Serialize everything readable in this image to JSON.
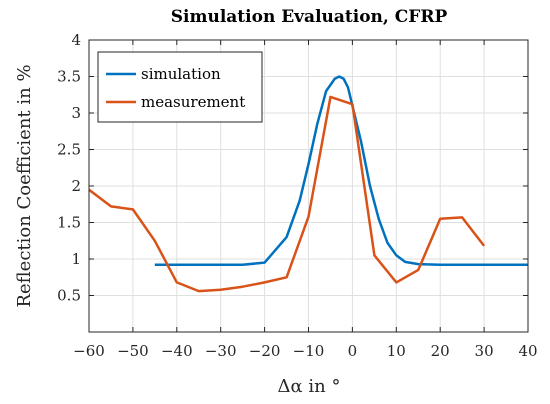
{
  "chart_data": {
    "type": "line",
    "title": "Simulation Evaluation, CFRP",
    "xlabel": "Δα in °",
    "ylabel": "Reflection Coefficient in %",
    "xlim": [
      -60,
      40
    ],
    "ylim": [
      0,
      4
    ],
    "xticks": [
      -60,
      -50,
      -40,
      -30,
      -20,
      -10,
      0,
      10,
      20,
      30,
      40
    ],
    "xtick_labels": [
      "−60",
      "−50",
      "−40",
      "−30",
      "−20",
      "−10",
      "0",
      "10",
      "20",
      "30",
      "40"
    ],
    "yticks": [
      0,
      0.5,
      1,
      1.5,
      2,
      2.5,
      3,
      3.5,
      4
    ],
    "ytick_labels": [
      "",
      "0.5",
      "1",
      "1.5",
      "2",
      "2.5",
      "3",
      "3.5",
      "4"
    ],
    "grid": true,
    "legend_position": "top-left",
    "series": [
      {
        "name": "simulation",
        "color": "#0072BD",
        "x": [
          -45,
          -40,
          -35,
          -30,
          -25,
          -20,
          -15,
          -12,
          -10,
          -8,
          -6,
          -4,
          -3,
          -2,
          -1,
          0,
          2,
          4,
          6,
          8,
          10,
          12,
          15,
          20,
          25,
          30,
          35,
          40
        ],
        "y": [
          0.92,
          0.92,
          0.92,
          0.92,
          0.92,
          0.95,
          1.3,
          1.8,
          2.3,
          2.85,
          3.3,
          3.47,
          3.5,
          3.47,
          3.35,
          3.1,
          2.6,
          2.0,
          1.55,
          1.22,
          1.05,
          0.96,
          0.93,
          0.92,
          0.92,
          0.92,
          0.92,
          0.92
        ]
      },
      {
        "name": "measurement",
        "color": "#D95319",
        "x": [
          -60,
          -55,
          -50,
          -45,
          -40,
          -35,
          -30,
          -25,
          -20,
          -15,
          -10,
          -5,
          0,
          5,
          10,
          15,
          20,
          25,
          30
        ],
        "y": [
          1.95,
          1.72,
          1.68,
          1.25,
          0.68,
          0.56,
          0.58,
          0.62,
          0.68,
          0.75,
          1.58,
          3.22,
          3.12,
          1.05,
          0.68,
          0.85,
          1.55,
          1.57,
          1.18
        ]
      }
    ]
  }
}
